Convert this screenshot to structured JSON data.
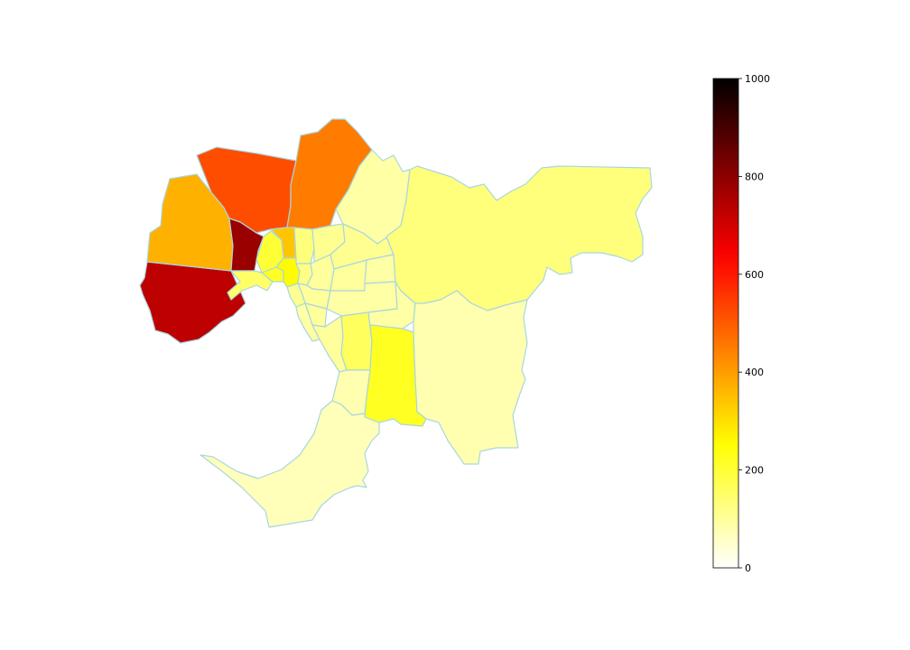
{
  "map": {
    "colormap": "hot_r",
    "boundary_color": "#a9d6e0",
    "regions": [
      {
        "id": "wyndham",
        "value": 730
      },
      {
        "id": "melton",
        "value": 370
      },
      {
        "id": "hume",
        "value": 520
      },
      {
        "id": "whittlesea",
        "value": 450
      },
      {
        "id": "brimbank",
        "value": 780
      },
      {
        "id": "moonee-valley",
        "value": 200
      },
      {
        "id": "moreland",
        "value": 340
      },
      {
        "id": "darebin",
        "value": 130
      },
      {
        "id": "banyule",
        "value": 110
      },
      {
        "id": "hobsons-bay",
        "value": 150
      },
      {
        "id": "maribyrnong",
        "value": 220
      },
      {
        "id": "melbourne",
        "value": 260
      },
      {
        "id": "yarra",
        "value": 120
      },
      {
        "id": "boroondara",
        "value": 100
      },
      {
        "id": "manningham",
        "value": 110
      },
      {
        "id": "whitehorse",
        "value": 100
      },
      {
        "id": "maroondah",
        "value": 90
      },
      {
        "id": "stonnington",
        "value": 100
      },
      {
        "id": "port-phillip",
        "value": 110
      },
      {
        "id": "glen-eira",
        "value": 100
      },
      {
        "id": "monash",
        "value": 90
      },
      {
        "id": "bayside",
        "value": 90
      },
      {
        "id": "kingston",
        "value": 100
      },
      {
        "id": "greater-dandenong",
        "value": 160
      },
      {
        "id": "knox",
        "value": 90
      },
      {
        "id": "frankston",
        "value": 80
      },
      {
        "id": "casey",
        "value": 220
      },
      {
        "id": "nillumbik",
        "value": 90
      },
      {
        "id": "yarra-ranges",
        "value": 130
      },
      {
        "id": "cardinia",
        "value": 80
      },
      {
        "id": "mornington-peninsula",
        "value": 70
      }
    ]
  },
  "colorbar": {
    "min": 0,
    "max": 1000,
    "ticks": [
      0,
      200,
      400,
      600,
      800,
      1000
    ],
    "tick_labels": [
      "0",
      "200",
      "400",
      "600",
      "800",
      "1000"
    ]
  }
}
